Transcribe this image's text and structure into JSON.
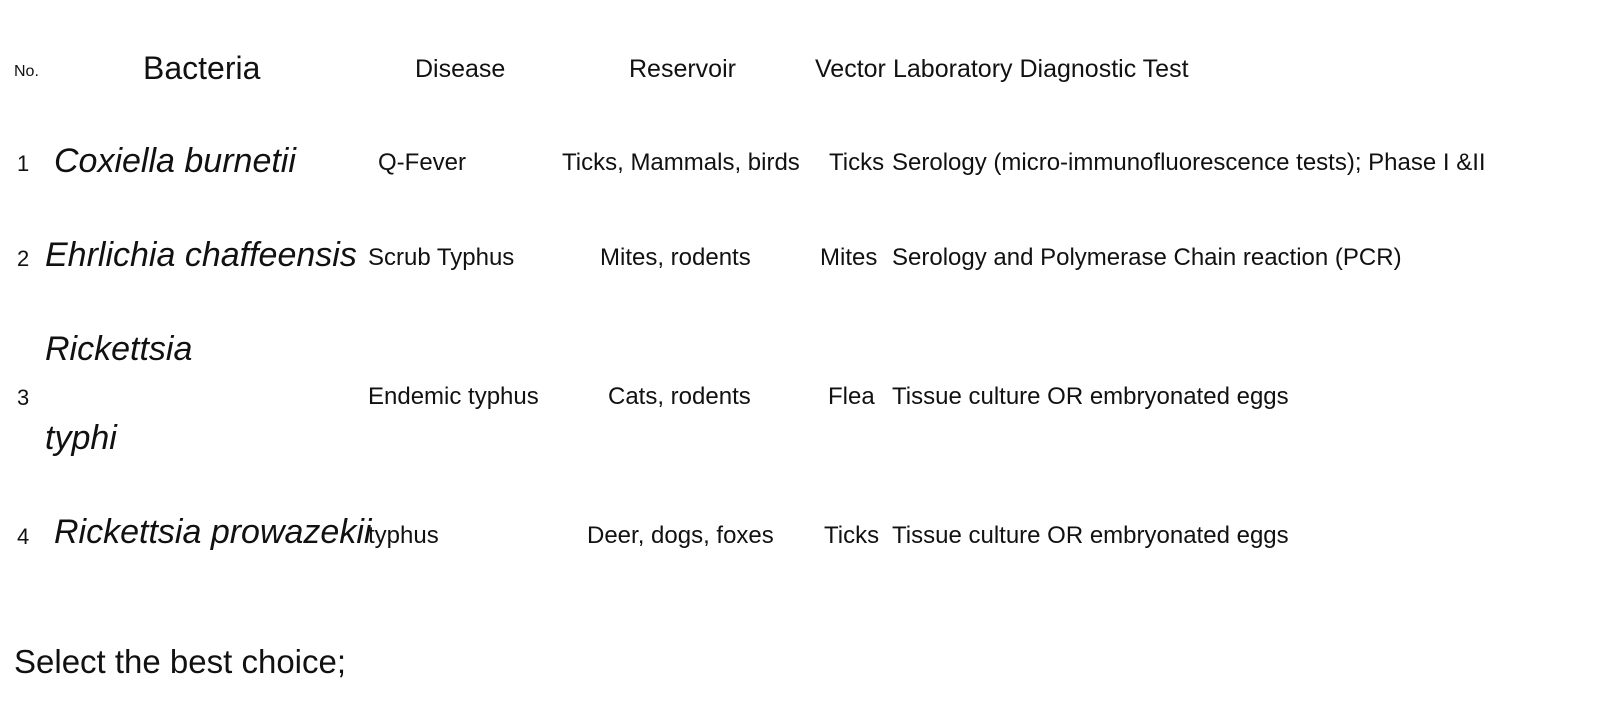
{
  "table": {
    "headers": {
      "no": "No.",
      "bacteria": "Bacteria",
      "disease": "Disease",
      "reservoir": "Reservoir",
      "vector": "Vector",
      "lab_test": "Laboratory Diagnostic Test"
    },
    "rows": [
      {
        "no": "1",
        "bacteria": "Coxiella burnetii",
        "disease": "Q-Fever",
        "reservoir": "Ticks, Mammals, birds",
        "vector": "Ticks",
        "lab_test": "Serology (micro-immunofluorescence tests); Phase I &II"
      },
      {
        "no": "2",
        "bacteria": "Ehrlichia chaffeensis",
        "disease": "Scrub Typhus",
        "reservoir": "Mites, rodents",
        "vector": "Mites",
        "lab_test": "Serology and Polymerase Chain reaction (PCR)"
      },
      {
        "no": "3",
        "bacteria_line1": "Rickettsia",
        "bacteria_line2": "typhi",
        "disease": "Endemic typhus",
        "reservoir": "Cats, rodents",
        "vector": "Flea",
        "lab_test": "Tissue culture OR embryonated eggs"
      },
      {
        "no": "4",
        "bacteria": "Rickettsia prowazekii",
        "disease": "typhus",
        "reservoir": "Deer, dogs, foxes",
        "vector": "Ticks",
        "lab_test": "Tissue culture OR embryonated eggs"
      }
    ]
  },
  "question": "Select the best choice;"
}
